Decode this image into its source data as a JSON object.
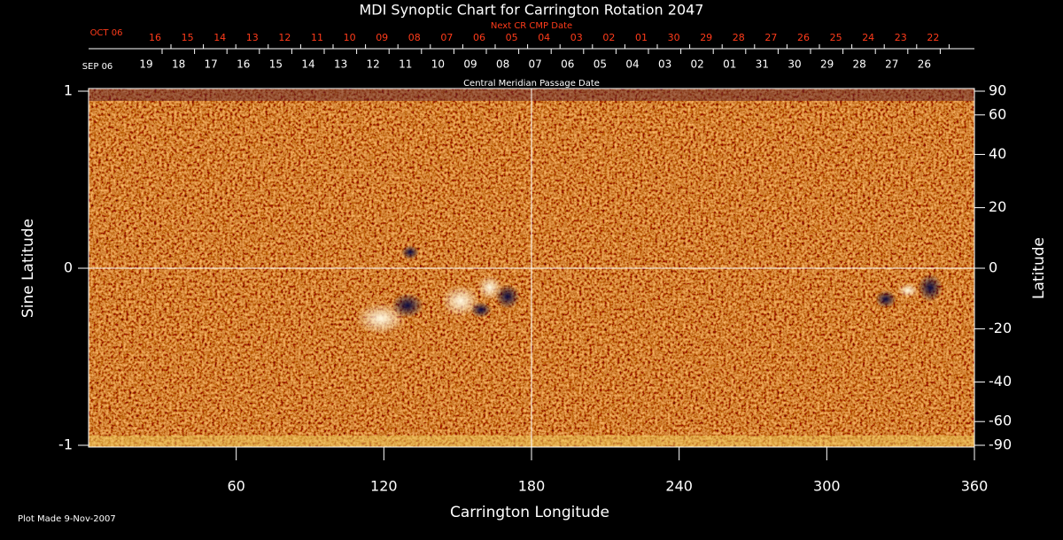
{
  "chart_data": {
    "type": "synoptic-map",
    "title": "MDI Synoptic Chart for Carrington Rotation 2047",
    "xlabel": "Carrington Longitude",
    "ylabel": "Sine Latitude",
    "y2label": "Latitude",
    "xlim": [
      0,
      360
    ],
    "xticks": [
      60,
      120,
      180,
      240,
      300,
      360
    ],
    "ylim": [
      -1,
      1
    ],
    "yticks": [
      -1,
      0,
      1
    ],
    "y2lim": [
      -90,
      90
    ],
    "y2scale": "sine",
    "y2ticks": [
      90,
      60,
      40,
      20,
      0,
      -20,
      -40,
      -60,
      -90
    ],
    "reference_lines": {
      "x": 180,
      "y": 0
    },
    "date_rows": [
      {
        "title": "Next CR CMP Date",
        "start_label": "OCT 06",
        "color": "#ff3b1a",
        "dates": [
          "16",
          "15",
          "14",
          "13",
          "12",
          "11",
          "10",
          "09",
          "08",
          "07",
          "06",
          "05",
          "04",
          "03",
          "02",
          "01",
          "30",
          "29",
          "28",
          "27",
          "26",
          "25",
          "24",
          "23",
          "22"
        ]
      },
      {
        "title": "Central Meridian Passage Date",
        "start_label": "SEP 06",
        "color": "#ffffff",
        "dates": [
          "19",
          "18",
          "17",
          "16",
          "15",
          "14",
          "13",
          "12",
          "11",
          "10",
          "09",
          "08",
          "07",
          "06",
          "05",
          "04",
          "03",
          "02",
          "01",
          "31",
          "30",
          "29",
          "28",
          "27",
          "26"
        ]
      }
    ],
    "footer": "Plot Made  9-Nov-2007"
  }
}
